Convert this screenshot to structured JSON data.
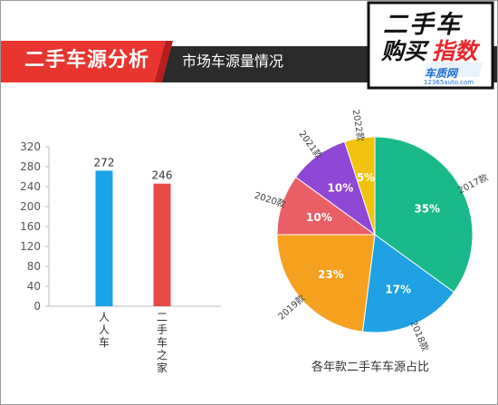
{
  "header": {
    "title": "二手车源分析",
    "subtitle": "市场车源量情况",
    "brand": {
      "line1": "二手车",
      "line2_buy": "购买",
      "line2_index": "指数",
      "site": "车质网",
      "url": "12365auto.com"
    },
    "colors": {
      "banner_dark": "#2b2b2b",
      "banner_red": "#e8352f",
      "brand_red": "#e8262b"
    }
  },
  "chart_data": [
    {
      "type": "bar",
      "categories": [
        "人人车",
        "二手车之家"
      ],
      "values": [
        272,
        246
      ],
      "ylim": [
        0,
        320
      ],
      "yticks": [
        0,
        40,
        80,
        120,
        160,
        200,
        240,
        280,
        320
      ],
      "colors": [
        "#1aa3e6",
        "#e84a47"
      ],
      "show_value_labels": true,
      "grid": false
    },
    {
      "type": "pie",
      "title": "各年款二手车车源占比",
      "slices": [
        {
          "label": "2017款",
          "value": 35,
          "display": "35%",
          "color": "#19b98a"
        },
        {
          "label": "2018款",
          "value": 17,
          "display": "17%",
          "color": "#1fa1e3"
        },
        {
          "label": "2019款",
          "value": 23,
          "display": "23%",
          "color": "#f5a01f"
        },
        {
          "label": "2020款",
          "value": 10,
          "display": "10%",
          "color": "#e95f65"
        },
        {
          "label": "2021款",
          "value": 10,
          "display": "10%",
          "color": "#8f47d6"
        },
        {
          "label": "2022款",
          "value": 5,
          "display": "5%",
          "color": "#f2c20f"
        }
      ]
    }
  ]
}
